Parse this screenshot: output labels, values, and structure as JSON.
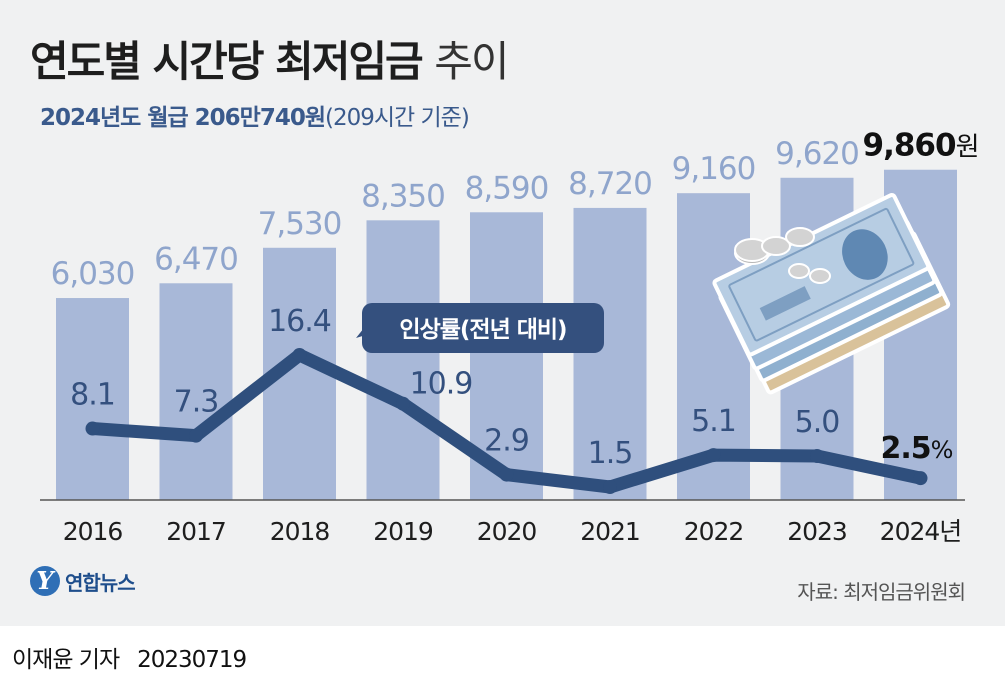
{
  "header": {
    "title_main": "연도별 시간당 최저임금",
    "title_suffix": "추이",
    "subtitle_main": "2024년도 월급 206만740원",
    "subtitle_note": "(209시간 기준)"
  },
  "chart_data": {
    "type": "bar",
    "categories": [
      "2016",
      "2017",
      "2018",
      "2019",
      "2020",
      "2021",
      "2022",
      "2023",
      "2024"
    ],
    "last_category_suffix": "년",
    "series": [
      {
        "name": "시간당 최저임금",
        "values": [
          6030,
          6470,
          7530,
          8350,
          8590,
          8720,
          9160,
          9620,
          9860
        ],
        "labels": [
          "6,030",
          "6,470",
          "7,530",
          "8,350",
          "8,590",
          "8,720",
          "9,160",
          "9,620",
          "9,860"
        ],
        "last_label_suffix": "원",
        "color": "#a8b8d8"
      },
      {
        "name": "인상률(전년 대비)",
        "type": "line",
        "values": [
          8.1,
          7.3,
          16.4,
          10.9,
          2.9,
          1.5,
          5.1,
          5.0,
          2.5
        ],
        "labels": [
          "8.1",
          "7.3",
          "16.4",
          "10.9",
          "2.9",
          "1.5",
          "5.1",
          "5.0",
          "2.5"
        ],
        "last_label_suffix": "%",
        "color": "#2f4f7d"
      }
    ],
    "callout": "인상률(전년 대비)",
    "ylim": [
      0,
      10000
    ]
  },
  "brand": {
    "logo_letter": "Y",
    "name": "연합뉴스"
  },
  "source": "자료: 최저임금위원회",
  "footer": {
    "reporter": "이재윤 기자",
    "date": "20230719"
  },
  "colors": {
    "bar": "#a8b8d8",
    "bar_label": "#8fa5cc",
    "line": "#2f4f7d",
    "line_label": "#34507e",
    "highlight_label": "#111111"
  }
}
